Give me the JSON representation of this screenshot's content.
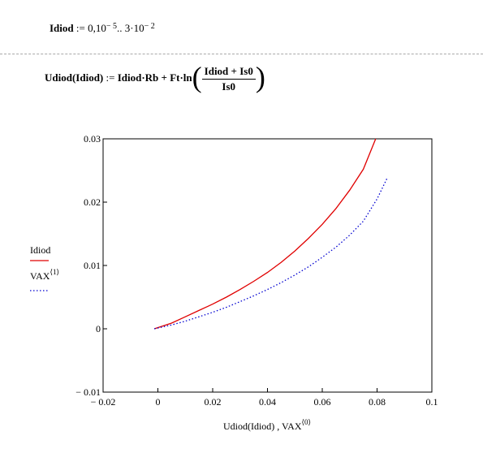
{
  "formula1": {
    "lhs": "Idiod",
    "assign": " := ",
    "range_start": "0,10",
    "exp1": "− 5",
    "range_sep": ".. 3·10",
    "exp2": "− 2"
  },
  "formula2": {
    "lhs": "Udiod(Idiod)",
    "assign": " := ",
    "term1": "Idiod·Rb + Ft·ln",
    "numerator": "Idiod + Is0",
    "denominator": "Is0"
  },
  "colors": {
    "series1": "#e00000",
    "series2": "#0000d0",
    "frame": "#000000",
    "divider": "#a9a9a9"
  },
  "chart_data": {
    "type": "line",
    "xlabel_main": "Udiod(Idiod) , VAX",
    "xlabel_sup": "⟨0⟩",
    "ylabel": "",
    "xlim": [
      -0.02,
      0.1
    ],
    "ylim": [
      -0.01,
      0.03
    ],
    "x_ticks": [
      -0.02,
      0,
      0.02,
      0.04,
      0.06,
      0.08,
      0.1
    ],
    "x_tick_labels": [
      "− 0.02",
      "0",
      "0.02",
      "0.04",
      "0.06",
      "0.08",
      "0.1"
    ],
    "y_ticks": [
      -0.01,
      0,
      0.01,
      0.02,
      0.03
    ],
    "y_tick_labels": [
      "− 0.01",
      "0",
      "0.01",
      "0.02",
      "0.03"
    ],
    "legend": [
      {
        "label": "Idiod",
        "sup": "",
        "style": "solid"
      },
      {
        "label": "VAX",
        "sup": "⟨1⟩",
        "style": "dotted"
      }
    ],
    "series": [
      {
        "name": "Idiod",
        "style": "solid",
        "x": [
          -0.0013,
          0.005,
          0.01,
          0.015,
          0.02,
          0.025,
          0.03,
          0.035,
          0.04,
          0.045,
          0.05,
          0.055,
          0.06,
          0.065,
          0.07,
          0.075,
          0.0795
        ],
        "y": [
          0.0,
          0.0009,
          0.0019,
          0.0029,
          0.0039,
          0.005,
          0.0062,
          0.0075,
          0.0089,
          0.0105,
          0.0123,
          0.0143,
          0.0165,
          0.019,
          0.0219,
          0.0252,
          0.03
        ]
      },
      {
        "name": "VAX",
        "style": "dotted",
        "x": [
          -0.0013,
          0.005,
          0.01,
          0.015,
          0.02,
          0.025,
          0.03,
          0.035,
          0.04,
          0.045,
          0.05,
          0.055,
          0.06,
          0.065,
          0.07,
          0.075,
          0.08,
          0.0838
        ],
        "y": [
          0.0,
          0.0006,
          0.0012,
          0.0019,
          0.0026,
          0.0034,
          0.0043,
          0.0052,
          0.0062,
          0.0073,
          0.0085,
          0.0098,
          0.0113,
          0.0129,
          0.0148,
          0.017,
          0.0205,
          0.0239
        ]
      }
    ]
  }
}
